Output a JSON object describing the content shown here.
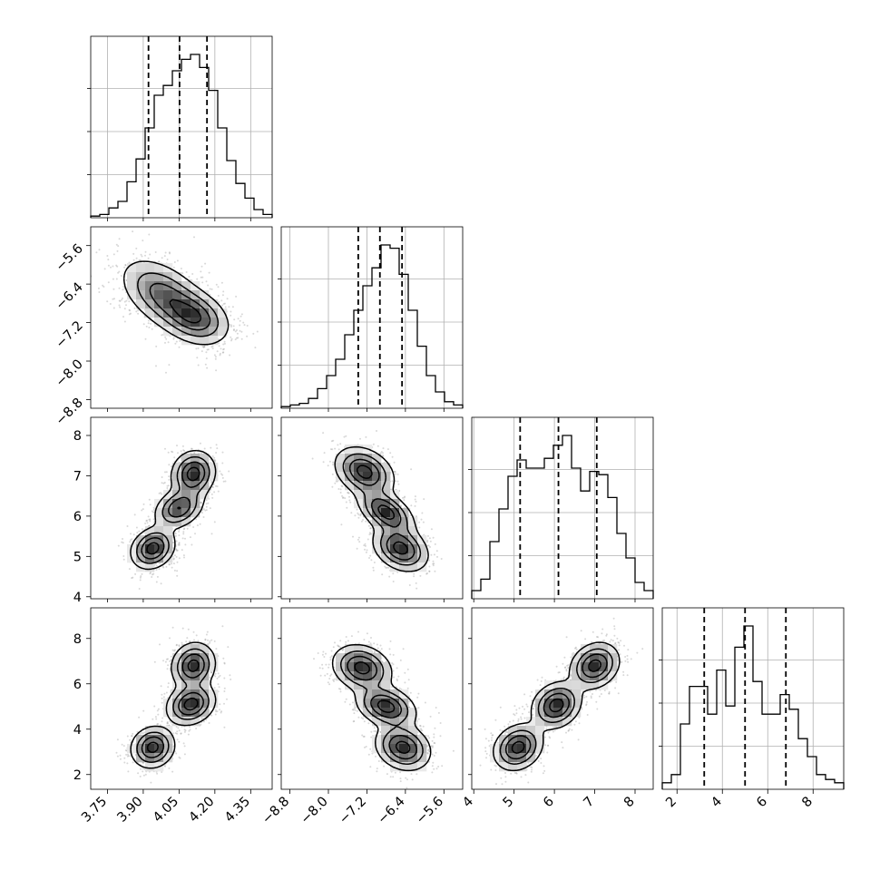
{
  "chart_data": {
    "type": "corner",
    "grid": true,
    "quantile_lines": "dashed",
    "axes": {
      "a": {
        "range": [
          3.68,
          4.44
        ],
        "ticks": [
          "3.75",
          "3.90",
          "4.05",
          "4.20",
          "4.35"
        ],
        "tick_values": [
          3.75,
          3.9,
          4.05,
          4.2,
          4.35
        ],
        "quantiles": [
          3.922,
          4.052,
          4.167
        ]
      },
      "b": {
        "range": [
          -8.98,
          -5.21
        ],
        "ticks": [
          "−8.8",
          "−8.0",
          "−7.2",
          "−6.4",
          "−5.6"
        ],
        "tick_values": [
          -8.8,
          -8.0,
          -7.2,
          -6.4,
          -5.6
        ],
        "quantiles": [
          -7.38,
          -6.93,
          -6.47
        ]
      },
      "c": {
        "range": [
          3.95,
          8.45
        ],
        "ticks": [
          "4",
          "5",
          "6",
          "7",
          "8"
        ],
        "tick_values": [
          4,
          5,
          6,
          7,
          8
        ],
        "quantiles": [
          5.15,
          6.1,
          7.05
        ]
      },
      "d": {
        "range": [
          1.35,
          9.35
        ],
        "ticks": [
          "2",
          "4",
          "6",
          "8"
        ],
        "tick_values": [
          2,
          4,
          6,
          8
        ],
        "quantiles": [
          3.2,
          5.0,
          6.8
        ]
      }
    },
    "histograms": {
      "a": [
        0.01,
        0.02,
        0.06,
        0.1,
        0.22,
        0.36,
        0.55,
        0.75,
        0.81,
        0.9,
        0.97,
        1.0,
        0.92,
        0.78,
        0.55,
        0.35,
        0.21,
        0.12,
        0.05,
        0.02
      ],
      "b": [
        0.01,
        0.02,
        0.03,
        0.06,
        0.12,
        0.2,
        0.3,
        0.45,
        0.6,
        0.75,
        0.86,
        1.0,
        0.98,
        0.82,
        0.6,
        0.38,
        0.2,
        0.1,
        0.04,
        0.02
      ],
      "c": [
        0.05,
        0.12,
        0.35,
        0.55,
        0.75,
        0.85,
        0.8,
        0.8,
        0.86,
        0.94,
        1.0,
        0.8,
        0.66,
        0.78,
        0.76,
        0.62,
        0.4,
        0.25,
        0.1,
        0.05
      ],
      "d": [
        0.04,
        0.09,
        0.4,
        0.63,
        0.63,
        0.46,
        0.73,
        0.51,
        0.87,
        1.0,
        0.66,
        0.46,
        0.46,
        0.58,
        0.49,
        0.31,
        0.2,
        0.09,
        0.06,
        0.04
      ]
    },
    "pairs": [
      {
        "x": "a",
        "y": "b",
        "components": [
          {
            "cx": 3.99,
            "cy": -6.65,
            "sx": 0.09,
            "sy": 0.38,
            "rho": -0.5,
            "w": 0.5
          },
          {
            "cx": 4.12,
            "cy": -7.1,
            "sx": 0.07,
            "sy": 0.28,
            "rho": -0.3,
            "w": 0.5
          }
        ]
      },
      {
        "x": "a",
        "y": "c",
        "components": [
          {
            "cx": 3.94,
            "cy": 5.2,
            "sx": 0.045,
            "sy": 0.25,
            "rho": 0.2,
            "w": 0.35
          },
          {
            "cx": 4.05,
            "cy": 6.2,
            "sx": 0.05,
            "sy": 0.25,
            "rho": 0.3,
            "w": 0.3
          },
          {
            "cx": 4.11,
            "cy": 7.05,
            "sx": 0.045,
            "sy": 0.28,
            "rho": 0.1,
            "w": 0.35
          }
        ]
      },
      {
        "x": "b",
        "y": "c",
        "components": [
          {
            "cx": -7.25,
            "cy": 7.1,
            "sx": 0.3,
            "sy": 0.3,
            "rho": -0.3,
            "w": 0.33
          },
          {
            "cx": -6.8,
            "cy": 6.1,
            "sx": 0.28,
            "sy": 0.28,
            "rho": -0.5,
            "w": 0.34
          },
          {
            "cx": -6.5,
            "cy": 5.2,
            "sx": 0.28,
            "sy": 0.28,
            "rho": -0.3,
            "w": 0.33
          }
        ]
      },
      {
        "x": "a",
        "y": "d",
        "components": [
          {
            "cx": 3.94,
            "cy": 3.2,
            "sx": 0.045,
            "sy": 0.45,
            "rho": 0.1,
            "w": 0.33
          },
          {
            "cx": 4.1,
            "cy": 5.1,
            "sx": 0.05,
            "sy": 0.45,
            "rho": 0.2,
            "w": 0.34
          },
          {
            "cx": 4.11,
            "cy": 6.8,
            "sx": 0.045,
            "sy": 0.5,
            "rho": 0.1,
            "w": 0.33
          }
        ]
      },
      {
        "x": "b",
        "y": "d",
        "components": [
          {
            "cx": -7.3,
            "cy": 6.7,
            "sx": 0.3,
            "sy": 0.5,
            "rho": -0.2,
            "w": 0.33
          },
          {
            "cx": -6.8,
            "cy": 5.0,
            "sx": 0.3,
            "sy": 0.45,
            "rho": -0.3,
            "w": 0.34
          },
          {
            "cx": -6.45,
            "cy": 3.2,
            "sx": 0.28,
            "sy": 0.5,
            "rho": -0.2,
            "w": 0.33
          }
        ]
      },
      {
        "x": "c",
        "y": "d",
        "components": [
          {
            "cx": 5.1,
            "cy": 3.2,
            "sx": 0.3,
            "sy": 0.5,
            "rho": 0.2,
            "w": 0.33
          },
          {
            "cx": 6.05,
            "cy": 5.05,
            "sx": 0.3,
            "sy": 0.5,
            "rho": 0.2,
            "w": 0.34
          },
          {
            "cx": 7.0,
            "cy": 6.8,
            "sx": 0.3,
            "sy": 0.5,
            "rho": 0.2,
            "w": 0.33
          }
        ]
      }
    ],
    "contour_levels": [
      0.12,
      0.33,
      0.58,
      0.85
    ],
    "colors": {
      "line": "#000000",
      "grid": "#b0b0b0",
      "points": "#8f8f8f",
      "density_dark": "#000000"
    }
  }
}
